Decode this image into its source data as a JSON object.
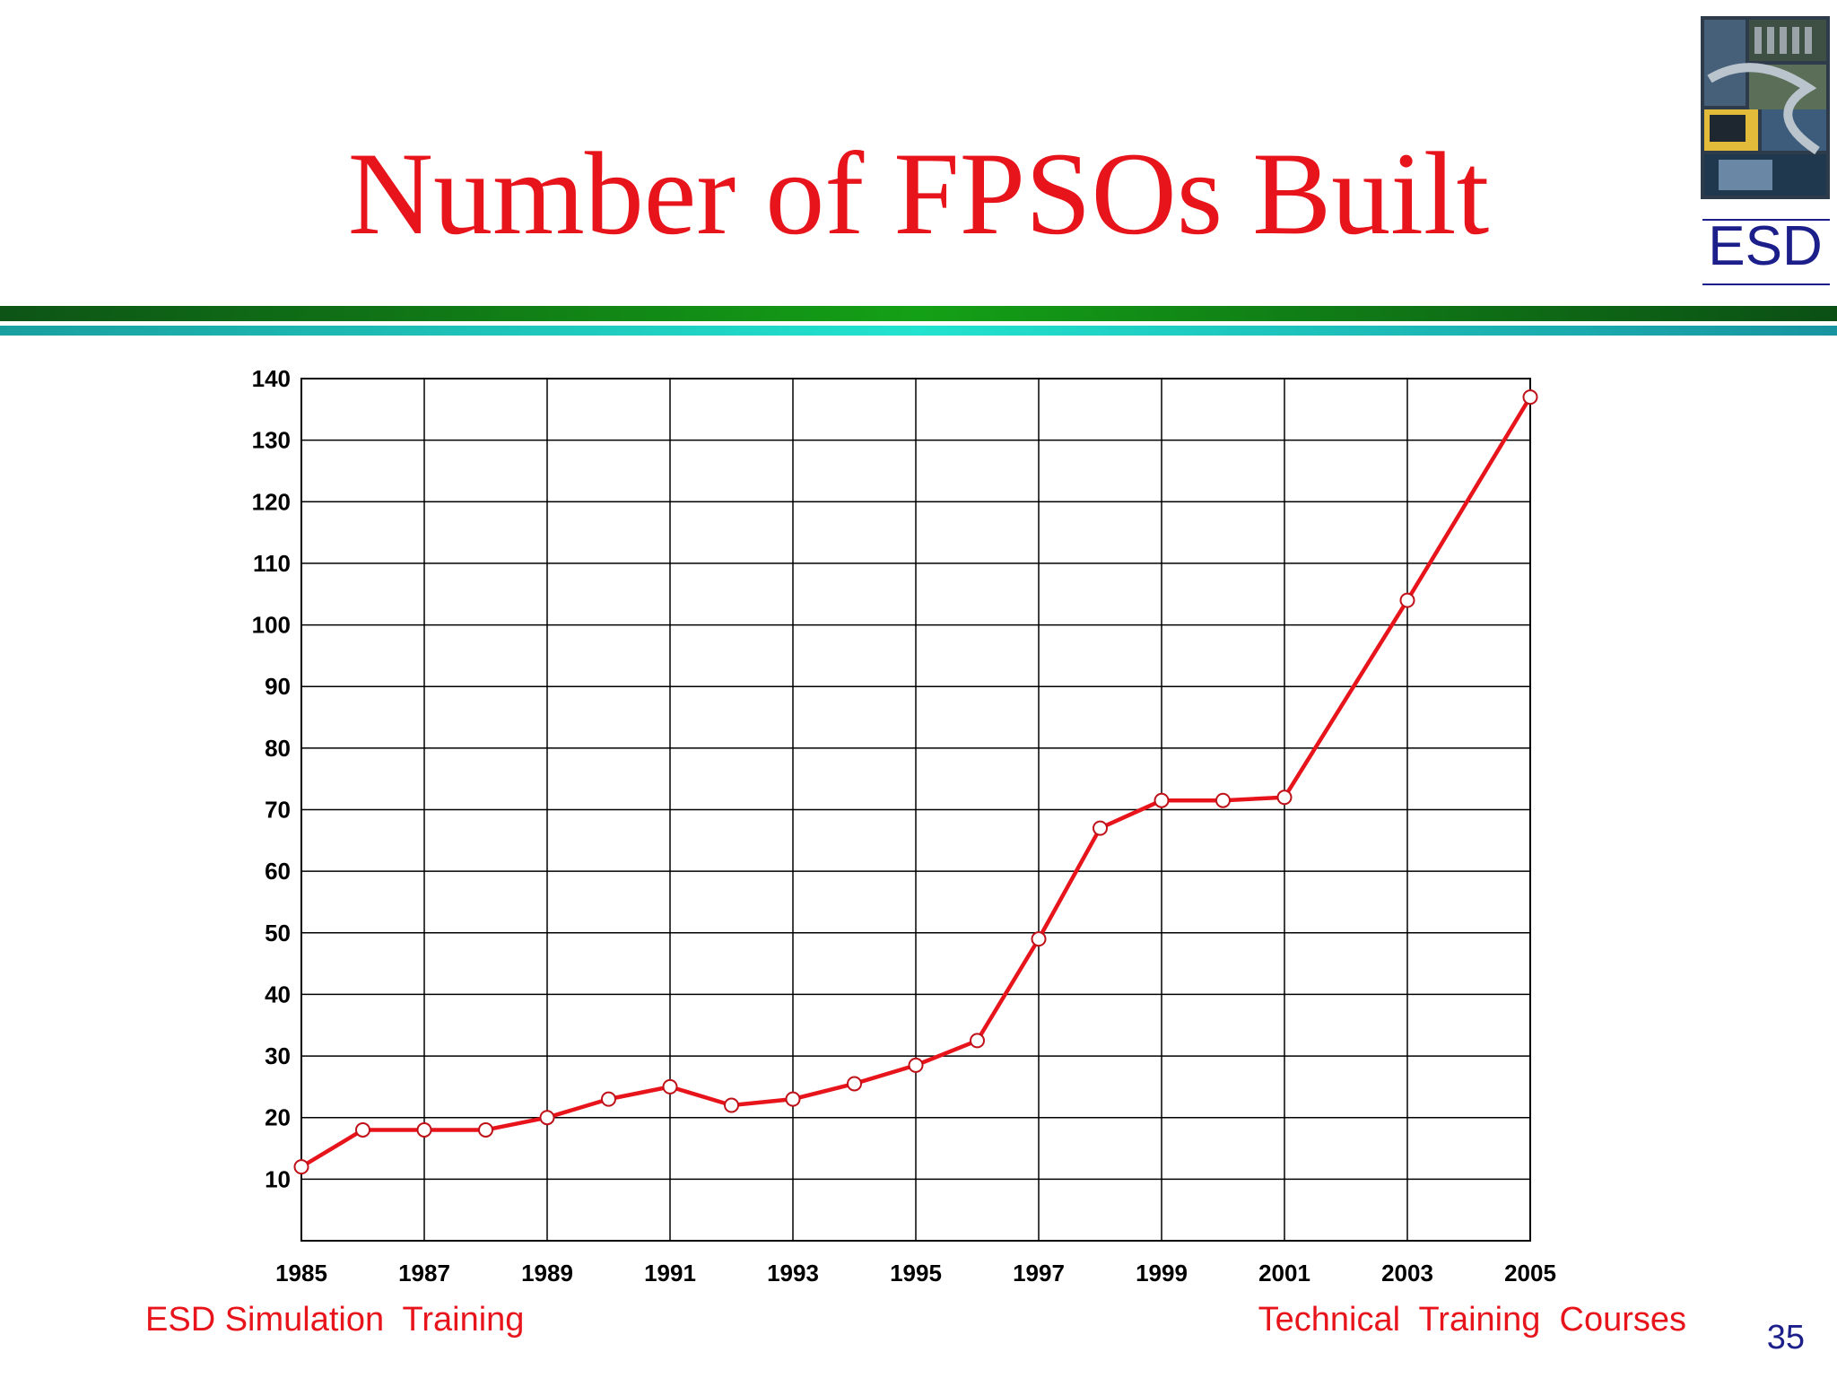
{
  "slide": {
    "title": "Number of FPSOs Built",
    "logo_text": "ESD",
    "footer_left": "ESD Simulation  Training",
    "footer_right": "Technical  Training  Courses",
    "page_number": "35"
  },
  "colors": {
    "title": "#e8141b",
    "series_line": "#e8141b",
    "logo_text": "#1c1f8a",
    "band_green": "#14a016",
    "band_teal": "#22e3cf"
  },
  "chart_data": {
    "type": "line",
    "title": "",
    "xlabel": "",
    "ylabel": "",
    "xlim": [
      1985,
      2005
    ],
    "ylim": [
      0,
      140
    ],
    "x_ticks": [
      "1985",
      "1987",
      "1989",
      "1991",
      "1993",
      "1995",
      "1997",
      "1999",
      "2001",
      "2003",
      "2005"
    ],
    "y_ticks": [
      "10",
      "20",
      "30",
      "40",
      "50",
      "60",
      "70",
      "80",
      "90",
      "100",
      "110",
      "120",
      "130",
      "140"
    ],
    "grid": true,
    "legend": "none",
    "series": [
      {
        "x": [
          1985,
          1986,
          1987,
          1988,
          1989,
          1990,
          1991,
          1992,
          1993,
          1994,
          1995,
          1996,
          1997,
          1998,
          1999,
          2000,
          2001,
          2003,
          2005
        ],
        "y": [
          12,
          18,
          18,
          18,
          20,
          23,
          25,
          22,
          23,
          25.5,
          28.5,
          32.5,
          49,
          67,
          71.5,
          71.5,
          72,
          104,
          137
        ]
      }
    ]
  }
}
